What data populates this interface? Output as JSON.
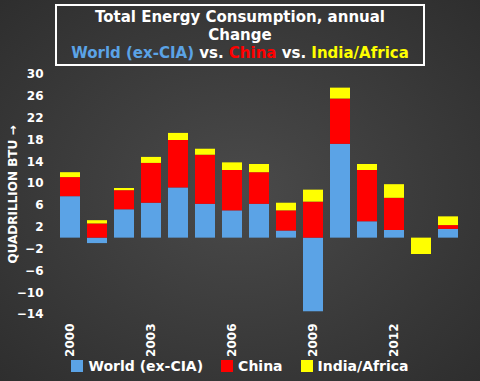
{
  "chart_data": {
    "type": "bar",
    "title": "Total Energy Consumption, annual Change",
    "subtitle": "World (ex-CIA) vs. China vs. India/Africa",
    "y_label": "QUADRILLION BTU",
    "categories": [
      "2000",
      null,
      null,
      "2003",
      null,
      null,
      "2006",
      null,
      null,
      "2009",
      null,
      null,
      "2012",
      null,
      null
    ],
    "series": [
      {
        "name": "World (ex-CIA)",
        "color": "#5ba3e6",
        "values": [
          7.6,
          -1.0,
          5.2,
          6.4,
          9.2,
          6.2,
          5.0,
          6.2,
          1.3,
          -13.5,
          17.2,
          3.0,
          1.4,
          0,
          1.6
        ]
      },
      {
        "name": "China",
        "color": "#ff0000",
        "values": [
          3.5,
          2.6,
          3.5,
          7.3,
          8.7,
          9.0,
          7.4,
          5.8,
          3.7,
          6.6,
          8.3,
          9.4,
          5.9,
          0,
          0.7
        ]
      },
      {
        "name": "India/Africa",
        "color": "#ffff00",
        "values": [
          0.9,
          0.6,
          0.4,
          1.1,
          1.3,
          1.1,
          1.4,
          1.5,
          1.4,
          2.2,
          2.0,
          1.1,
          2.5,
          -3.0,
          1.6
        ]
      }
    ],
    "ylim": [
      -14,
      30
    ],
    "yticks": [
      -14,
      -10,
      -6,
      -2,
      2,
      6,
      10,
      14,
      18,
      22,
      26,
      30
    ],
    "stacked": true,
    "grid": false,
    "legend": "bottom"
  }
}
